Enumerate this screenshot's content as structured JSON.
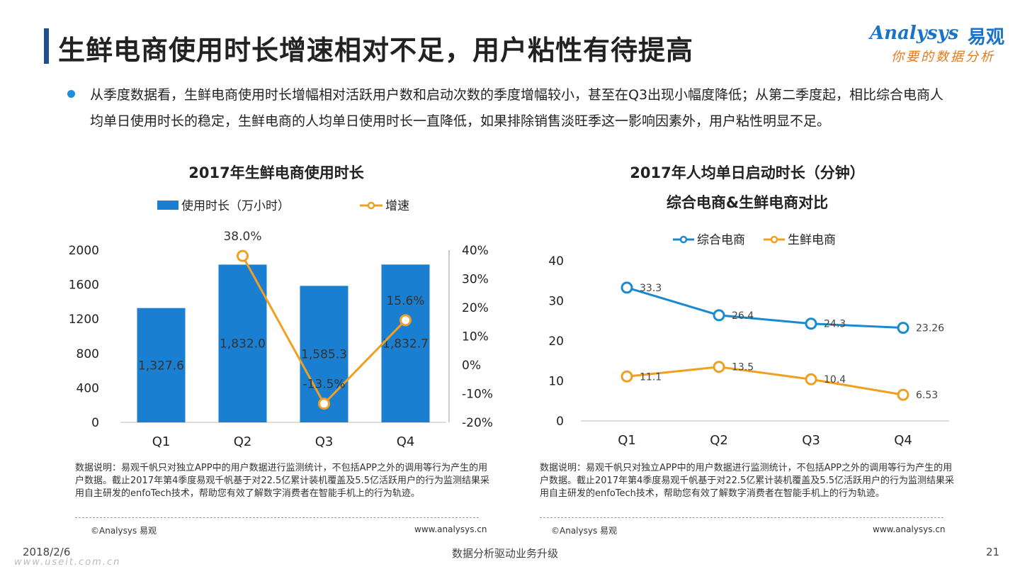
{
  "title": "生鲜电商使用时长增速相对不足，用户粘性有待提高",
  "logo": {
    "en": "Analysys",
    "cn": "易观",
    "slogan": "你要的数据分析"
  },
  "bullet": "从季度数据看，生鲜电商使用时长增幅相对活跃用户数和启动次数的季度增幅较小，甚至在Q3出现小幅度降低；从第二季度起，相比综合电商人均单日使用时长的稳定，生鲜电商的人均单日使用时长一直降低，如果排除销售淡旺季这一影响因素外，用户粘性明显不足。",
  "chart_data": [
    {
      "type": "bar",
      "title": "2017年生鲜电商使用时长",
      "categories": [
        "Q1",
        "Q2",
        "Q3",
        "Q4"
      ],
      "series": [
        {
          "name": "使用时长（万小时）",
          "type": "bar",
          "axis": "left",
          "values": [
            1327.6,
            1832.0,
            1585.3,
            1832.7
          ],
          "labels": [
            "1,327.6",
            "1,832.0",
            "1,585.3",
            "1,832.7"
          ],
          "color": "#1a7fd0"
        },
        {
          "name": "增速",
          "type": "line",
          "axis": "right",
          "values": [
            38.0,
            -13.5,
            15.6
          ],
          "x": [
            "Q2",
            "Q3",
            "Q4"
          ],
          "labels": [
            "38.0%",
            "-13.5%",
            "15.6%"
          ],
          "color": "#f0a020"
        }
      ],
      "ylim_left": [
        0,
        2000
      ],
      "yticks_left": [
        "0",
        "400",
        "800",
        "1200",
        "1600",
        "2000"
      ],
      "ylim_right": [
        -20,
        40
      ],
      "yticks_right": [
        "-20%",
        "-10%",
        "0%",
        "10%",
        "20%",
        "30%",
        "40%"
      ],
      "legend_position": "top"
    },
    {
      "type": "line",
      "title": "2017年人均单日启动时长（分钟）",
      "subtitle": "综合电商&生鲜电商对比",
      "categories": [
        "Q1",
        "Q2",
        "Q3",
        "Q4"
      ],
      "series": [
        {
          "name": "综合电商",
          "values": [
            33.3,
            26.4,
            24.3,
            23.26
          ],
          "labels": [
            "33.3",
            "26.4",
            "24.3",
            "23.26"
          ],
          "color": "#1a8ad0"
        },
        {
          "name": "生鲜电商",
          "values": [
            11.1,
            13.5,
            10.4,
            6.53
          ],
          "labels": [
            "11.1",
            "13.5",
            "10.4",
            "6.53"
          ],
          "color": "#f0a020"
        }
      ],
      "ylim": [
        0,
        40
      ],
      "yticks": [
        "0",
        "10",
        "20",
        "30",
        "40"
      ],
      "legend_position": "top"
    }
  ],
  "note_left": "数据说明：易观千帆只对独立APP中的用户数据进行监测统计，不包括APP之外的调用等行为产生的用户数据。截止2017年第4季度易观千帆基于对22.5亿累计装机覆盖及5.5亿活跃用户的行为监测结果采用自主研发的enfoTech技术，帮助您有效了解数字消费者在智能手机上的行为轨迹。",
  "note_right": "数据说明：易观千帆只对独立APP中的用户数据进行监测统计，不包括APP之外的调用等行为产生的用户数据。截止2017年第4季度易观千帆基于对22.5亿累计装机覆盖及5.5亿活跃用户的行为监测结果采用自主研发的enfoTech技术，帮助您有效了解数字消费者在智能手机上的行为轨迹。",
  "source_left": "©Analysys 易观",
  "url_left": "www.analysys.cn",
  "source_right": "©Analysys 易观",
  "url_right": "www.analysys.cn",
  "footer": {
    "date": "2018/2/6",
    "slogan": "数据分析驱动业务升级",
    "page": "21"
  },
  "watermark": "www.useit.com.cn"
}
